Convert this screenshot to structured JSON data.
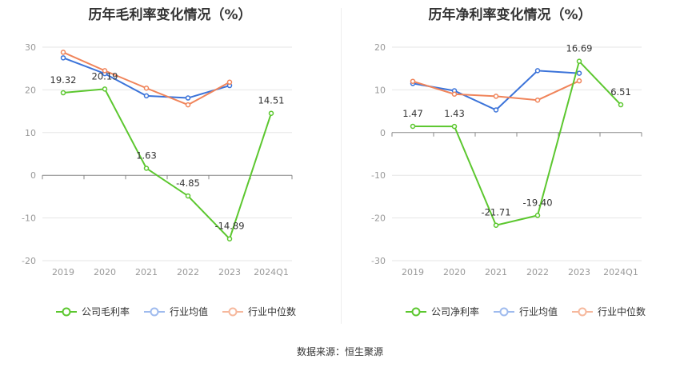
{
  "charts": [
    {
      "title": "历年毛利率变化情况（%）",
      "legend": [
        {
          "label": "公司毛利率",
          "color": "#5cc72f"
        },
        {
          "label": "行业均值",
          "color": "#3b73d9"
        },
        {
          "label": "行业中位数",
          "color": "#f0845a"
        }
      ]
    },
    {
      "title": "历年净利率变化情况（%）",
      "legend": [
        {
          "label": "公司净利率",
          "color": "#5cc72f"
        },
        {
          "label": "行业均值",
          "color": "#3b73d9"
        },
        {
          "label": "行业中位数",
          "color": "#f0845a"
        }
      ]
    }
  ],
  "source": "数据来源：恒生聚源",
  "chart_data": [
    {
      "type": "line",
      "title": "历年毛利率变化情况（%）",
      "categories": [
        "2019",
        "2020",
        "2021",
        "2022",
        "2023",
        "2024Q1"
      ],
      "ylim": [
        -20,
        30
      ],
      "yticks": [
        30,
        20,
        10,
        0,
        -10,
        -20
      ],
      "series": [
        {
          "name": "公司毛利率",
          "color": "#5cc72f",
          "values": [
            19.32,
            20.19,
            1.63,
            -4.85,
            -14.89,
            14.51
          ],
          "labels": [
            "19.32",
            "20.19",
            "1.63",
            "-4.85",
            "-14.89",
            "14.51"
          ]
        },
        {
          "name": "行业均值",
          "color": "#3b73d9",
          "values": [
            27.5,
            23.8,
            18.6,
            18.1,
            21.0,
            null
          ]
        },
        {
          "name": "行业中位数",
          "color": "#f0845a",
          "values": [
            28.8,
            24.5,
            20.4,
            16.5,
            21.8,
            null
          ]
        }
      ]
    },
    {
      "type": "line",
      "title": "历年净利率变化情况（%）",
      "categories": [
        "2019",
        "2020",
        "2021",
        "2022",
        "2023",
        "2024Q1"
      ],
      "ylim": [
        -30,
        20
      ],
      "yticks": [
        20,
        10,
        0,
        -10,
        -20,
        -30
      ],
      "series": [
        {
          "name": "公司净利率",
          "color": "#5cc72f",
          "values": [
            1.47,
            1.43,
            -21.71,
            -19.4,
            16.69,
            6.51
          ],
          "labels": [
            "1.47",
            "1.43",
            "-21.71",
            "-19.40",
            "16.69",
            "6.51"
          ]
        },
        {
          "name": "行业均值",
          "color": "#3b73d9",
          "values": [
            11.5,
            9.8,
            5.3,
            14.5,
            13.9,
            null
          ]
        },
        {
          "name": "行业中位数",
          "color": "#f0845a",
          "values": [
            12.0,
            9.0,
            8.5,
            7.6,
            12.1,
            null
          ]
        }
      ]
    }
  ]
}
